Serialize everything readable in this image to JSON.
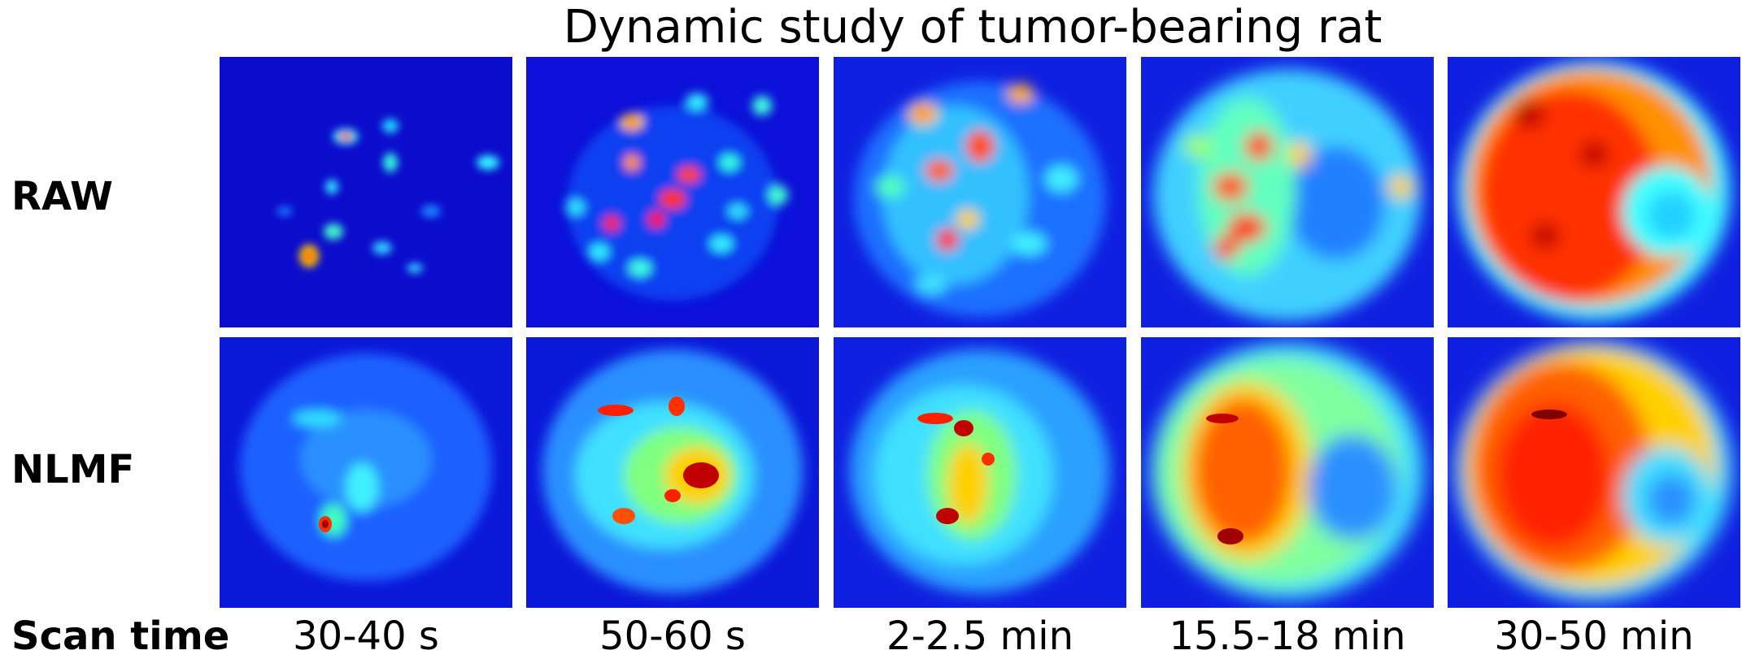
{
  "title": "Dynamic study of tumor-bearing rat",
  "row_labels": {
    "raw": "RAW",
    "nlmf": "NLMF"
  },
  "column_footer_label": "Scan time",
  "scan_times": [
    "30-40 s",
    "50-60 s",
    "2-2.5 min",
    "15.5-18 min",
    "30-50 min"
  ],
  "colormap": [
    "#00008f",
    "#0000ff",
    "#00ffff",
    "#ffff00",
    "#ff0000",
    "#800000"
  ]
}
